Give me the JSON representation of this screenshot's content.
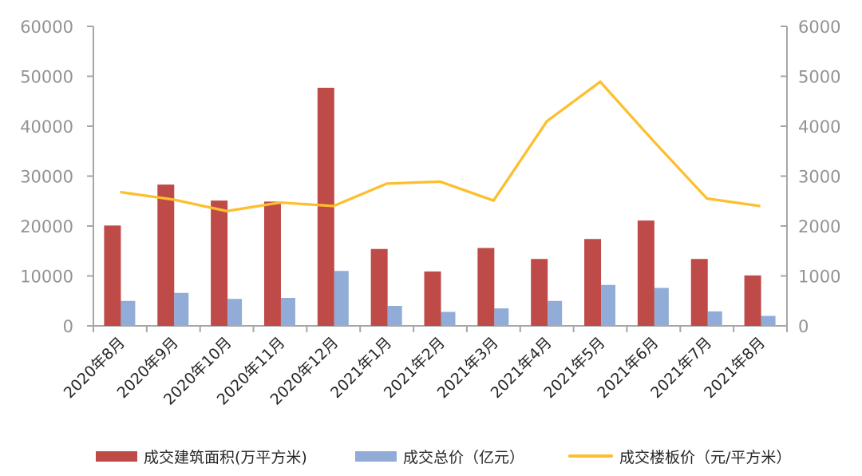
{
  "chart_data": {
    "type": "bar+line combo",
    "title": "",
    "categories": [
      "2020年8月",
      "2020年9月",
      "2020年10月",
      "2020年11月",
      "2020年12月",
      "2021年1月",
      "2021年2月",
      "2021年3月",
      "2021年4月",
      "2021年5月",
      "2021年6月",
      "2021年7月",
      "2021年8月"
    ],
    "series": [
      {
        "name": "成交建筑面积(万平方米)",
        "type": "bar",
        "axis": "left",
        "color": "#BE4B48",
        "values": [
          20100,
          28300,
          25100,
          24900,
          47700,
          15400,
          10900,
          15600,
          13400,
          17400,
          21100,
          13400,
          10100
        ]
      },
      {
        "name": "成交总价（亿元）",
        "type": "bar",
        "axis": "left",
        "color": "#92ACD8",
        "values": [
          5000,
          6600,
          5400,
          5600,
          11000,
          4000,
          2800,
          3500,
          5000,
          8200,
          7600,
          2900,
          2000
        ]
      },
      {
        "name": "成交楼板价（元/平方米）",
        "type": "line",
        "axis": "right",
        "color": "#FDBF2D",
        "values": [
          2680,
          2530,
          2300,
          2470,
          2400,
          2850,
          2890,
          2510,
          4100,
          4890,
          3700,
          2550,
          2400
        ]
      }
    ],
    "left_axis": {
      "min": 0,
      "max": 60000,
      "step": 10000,
      "tick_labels": [
        "0",
        "10000",
        "20000",
        "30000",
        "40000",
        "50000",
        "60000"
      ]
    },
    "right_axis": {
      "min": 0,
      "max": 6000,
      "step": 1000,
      "tick_labels": [
        "0",
        "1000",
        "2000",
        "3000",
        "4000",
        "5000",
        "6000"
      ]
    },
    "grid": false,
    "legend_position": "bottom",
    "x_label_rotation_deg": -45
  },
  "style": {
    "axis_color": "#A6A6A6",
    "y_tick_label_color": "#939393",
    "x_tick_label_color": "#262626",
    "legend_text_color": "#262626",
    "background": "#ffffff"
  }
}
